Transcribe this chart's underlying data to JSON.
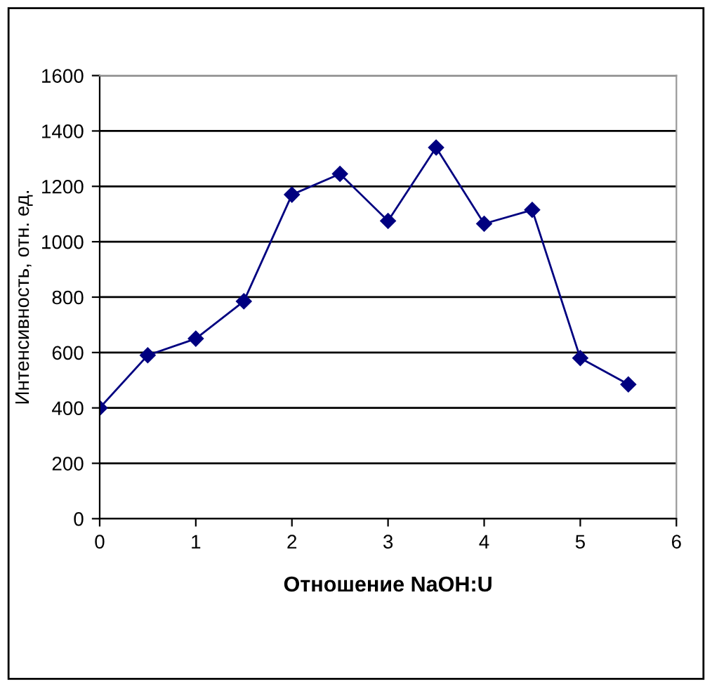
{
  "chart_data": {
    "type": "line",
    "xlabel": "Отношение NaOH:U",
    "ylabel": "Интенсивность, отн. ед.",
    "x": [
      0,
      0.5,
      1,
      1.5,
      2,
      2.5,
      3,
      3.5,
      4,
      4.5,
      5,
      5.5
    ],
    "series": [
      {
        "color": "#000080",
        "values": [
          400,
          590,
          650,
          785,
          1170,
          1245,
          1075,
          1340,
          1065,
          1115,
          580,
          485
        ]
      }
    ],
    "xlim": [
      0,
      6
    ],
    "xticks": [
      0,
      1,
      2,
      3,
      4,
      5,
      6
    ],
    "ylim": [
      0,
      1600
    ],
    "yticks": [
      0,
      200,
      400,
      600,
      800,
      1000,
      1200,
      1400,
      1600
    ],
    "grid": "y",
    "marker": "diamond",
    "line_style": "solid",
    "legend": false
  }
}
